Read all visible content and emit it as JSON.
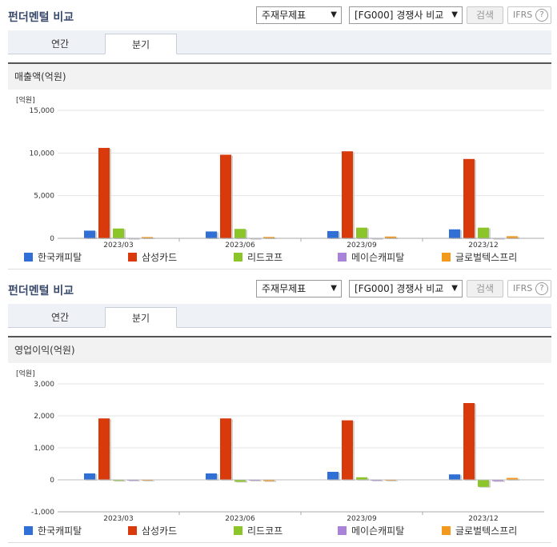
{
  "colors": {
    "series": [
      "#2f6fd6",
      "#d93a0b",
      "#8cc52a",
      "#a982d9",
      "#f39a1e"
    ]
  },
  "panels": [
    {
      "title": "펀더멘털 비교",
      "select_statement": "주재무제표",
      "select_peer": "[FG000] 경쟁사 비교",
      "search_button": "검색",
      "ifrs_label": "IFRS",
      "help_icon": "?",
      "tabs": [
        {
          "label": "연간",
          "active": false
        },
        {
          "label": "분기",
          "active": true
        }
      ],
      "chart_title": "매출액(억원)"
    },
    {
      "title": "펀더멘털 비교",
      "select_statement": "주재무제표",
      "select_peer": "[FG000] 경쟁사 비교",
      "search_button": "검색",
      "ifrs_label": "IFRS",
      "help_icon": "?",
      "tabs": [
        {
          "label": "연간",
          "active": false
        },
        {
          "label": "분기",
          "active": true
        }
      ],
      "chart_title": "영업이익(억원)"
    }
  ],
  "chart_data": [
    {
      "type": "bar",
      "title": "매출액(억원)",
      "ylabel": "[억원]",
      "ylim": [
        0,
        15000
      ],
      "yticks": [
        "0",
        "5,000",
        "10,000",
        "15,000"
      ],
      "categories": [
        "2023/03",
        "2023/06",
        "2023/09",
        "2023/12"
      ],
      "series": [
        {
          "name": "한국캐피탈",
          "values": [
            900,
            800,
            850,
            1050
          ]
        },
        {
          "name": "삼성카드",
          "values": [
            10600,
            9800,
            10200,
            9300
          ]
        },
        {
          "name": "리드코프",
          "values": [
            1150,
            1100,
            1250,
            1250
          ]
        },
        {
          "name": "메이슨캐피탈",
          "values": [
            30,
            30,
            30,
            30
          ]
        },
        {
          "name": "글로벌텍스프리",
          "values": [
            150,
            160,
            210,
            250
          ]
        }
      ],
      "legend": "bottom"
    },
    {
      "type": "bar",
      "title": "영업이익(억원)",
      "ylabel": "[억원]",
      "ylim": [
        -1000,
        3000
      ],
      "yticks": [
        "-1,000",
        "0",
        "1,000",
        "2,000",
        "3,000"
      ],
      "categories": [
        "2023/03",
        "2023/06",
        "2023/09",
        "2023/12"
      ],
      "series": [
        {
          "name": "한국캐피탈",
          "values": [
            200,
            200,
            250,
            170
          ]
        },
        {
          "name": "삼성카드",
          "values": [
            1920,
            1920,
            1860,
            2400
          ]
        },
        {
          "name": "리드코프",
          "values": [
            -30,
            -60,
            80,
            -220
          ]
        },
        {
          "name": "메이슨캐피탈",
          "values": [
            -5,
            -5,
            -5,
            -40
          ]
        },
        {
          "name": "글로벌텍스프리",
          "values": [
            0,
            -40,
            -20,
            60
          ]
        }
      ],
      "legend": "bottom"
    }
  ]
}
